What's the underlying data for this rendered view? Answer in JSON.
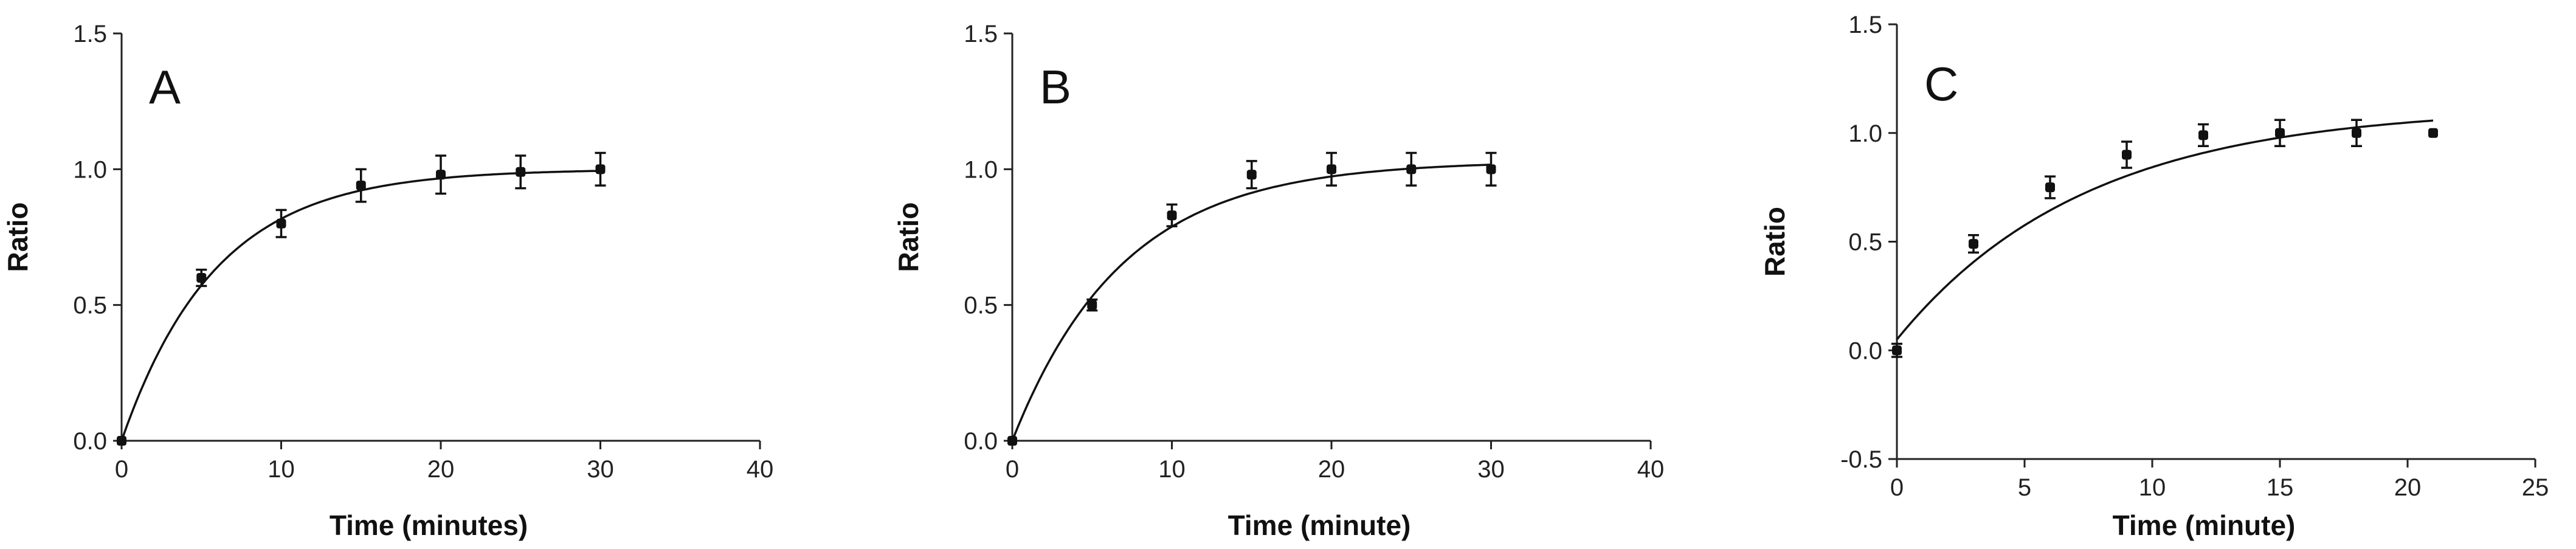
{
  "chart_data": [
    {
      "type": "scatter",
      "panel_label": "A",
      "xlabel": "Time (minutes)",
      "ylabel": "Ratio",
      "xlim": [
        0,
        40
      ],
      "ylim": [
        0,
        1.5
      ],
      "x_ticks": [
        0,
        10,
        20,
        30,
        40
      ],
      "y_ticks": [
        0.0,
        0.5,
        1.0,
        1.5
      ],
      "x_tick_labels": [
        "0",
        "10",
        "20",
        "30",
        "40"
      ],
      "y_tick_labels": [
        "0.0",
        "0.5",
        "1.0",
        "1.5"
      ],
      "points": [
        {
          "x": 0,
          "y": 0.0,
          "err": 0.0
        },
        {
          "x": 5,
          "y": 0.6,
          "err": 0.03
        },
        {
          "x": 10,
          "y": 0.8,
          "err": 0.05
        },
        {
          "x": 15,
          "y": 0.94,
          "err": 0.06
        },
        {
          "x": 20,
          "y": 0.98,
          "err": 0.07
        },
        {
          "x": 25,
          "y": 0.99,
          "err": 0.06
        },
        {
          "x": 30,
          "y": 1.0,
          "err": 0.06
        }
      ],
      "fit": {
        "model": "one-phase association",
        "plateau": 1.0,
        "rate": 0.17,
        "x_max": 30
      }
    },
    {
      "type": "scatter",
      "panel_label": "B",
      "xlabel": "Time (minute)",
      "ylabel": "Ratio",
      "xlim": [
        0,
        40
      ],
      "ylim": [
        0,
        1.5
      ],
      "x_ticks": [
        0,
        10,
        20,
        30,
        40
      ],
      "y_ticks": [
        0.0,
        0.5,
        1.0,
        1.5
      ],
      "x_tick_labels": [
        "0",
        "10",
        "20",
        "30",
        "40"
      ],
      "y_tick_labels": [
        "0.0",
        "0.5",
        "1.0",
        "1.5"
      ],
      "points": [
        {
          "x": 0,
          "y": 0.0,
          "err": 0.0
        },
        {
          "x": 5,
          "y": 0.5,
          "err": 0.02
        },
        {
          "x": 10,
          "y": 0.83,
          "err": 0.04
        },
        {
          "x": 15,
          "y": 0.98,
          "err": 0.05
        },
        {
          "x": 20,
          "y": 1.0,
          "err": 0.06
        },
        {
          "x": 25,
          "y": 1.0,
          "err": 0.06
        },
        {
          "x": 30,
          "y": 1.0,
          "err": 0.06
        }
      ],
      "fit": {
        "model": "one-phase association",
        "plateau": 1.03,
        "rate": 0.145,
        "x_max": 30
      }
    },
    {
      "type": "scatter",
      "panel_label": "C",
      "xlabel": "Time (minute)",
      "ylabel": "Ratio",
      "xlim": [
        0,
        25
      ],
      "ylim": [
        -0.5,
        1.5
      ],
      "x_ticks": [
        0,
        5,
        10,
        15,
        20,
        25
      ],
      "y_ticks": [
        -0.5,
        0.0,
        0.5,
        1.0,
        1.5
      ],
      "x_tick_labels": [
        "0",
        "5",
        "10",
        "15",
        "20",
        "25"
      ],
      "y_tick_labels": [
        "-0.5",
        "0.0",
        "0.5",
        "1.0",
        "1.5"
      ],
      "points": [
        {
          "x": 0,
          "y": 0.0,
          "err": 0.03
        },
        {
          "x": 3,
          "y": 0.49,
          "err": 0.04
        },
        {
          "x": 6,
          "y": 0.75,
          "err": 0.05
        },
        {
          "x": 9,
          "y": 0.9,
          "err": 0.06
        },
        {
          "x": 12,
          "y": 0.99,
          "err": 0.05
        },
        {
          "x": 15,
          "y": 1.0,
          "err": 0.06
        },
        {
          "x": 18,
          "y": 1.0,
          "err": 0.06
        },
        {
          "x": 21,
          "y": 1.0,
          "err": 0.0
        }
      ],
      "fit": {
        "model": "one-phase association",
        "y0": 0.05,
        "plateau": 1.12,
        "rate": 0.135,
        "x_max": 21
      }
    }
  ]
}
